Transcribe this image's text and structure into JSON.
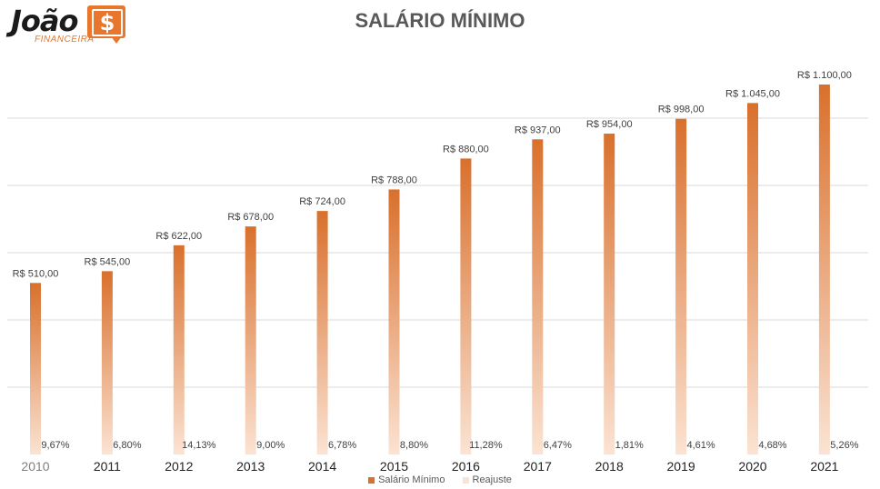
{
  "logo": {
    "name": "João",
    "symbol": "$",
    "subtitle": "FINANCEIRA"
  },
  "colors": {
    "bar_top": "#d9702c",
    "bar_bottom": "#fbe3d3",
    "grid": "#d9d9d9",
    "text": "#404040"
  },
  "chart_data": {
    "type": "bar",
    "title": "SALÁRIO MÍNIMO",
    "categories": [
      "2010",
      "2011",
      "2012",
      "2013",
      "2014",
      "2015",
      "2016",
      "2017",
      "2018",
      "2019",
      "2020",
      "2021"
    ],
    "series": [
      {
        "name": "Salário Mínimo",
        "values": [
          510,
          545,
          622,
          678,
          724,
          788,
          880,
          937,
          954,
          998,
          1045,
          1100
        ],
        "labels": [
          "R$ 510,00",
          "R$ 545,00",
          "R$ 622,00",
          "R$ 678,00",
          "R$ 724,00",
          "R$ 788,00",
          "R$ 880,00",
          "R$ 937,00",
          "R$ 954,00",
          "R$ 998,00",
          "R$ 1.045,00",
          "R$ 1.100,00"
        ]
      },
      {
        "name": "Reajuste",
        "values": [
          9.67,
          6.8,
          14.13,
          9.0,
          6.78,
          8.8,
          11.28,
          6.47,
          1.81,
          4.61,
          4.68,
          5.26
        ],
        "labels": [
          "9,67%",
          "6,80%",
          "14,13%",
          "9,00%",
          "6,78%",
          "8,80%",
          "11,28%",
          "6,47%",
          "1,81%",
          "4,61%",
          "4,68%",
          "5,26%"
        ]
      }
    ],
    "ylim": [
      0,
      1200
    ],
    "grid": true,
    "legend": "bottom"
  }
}
